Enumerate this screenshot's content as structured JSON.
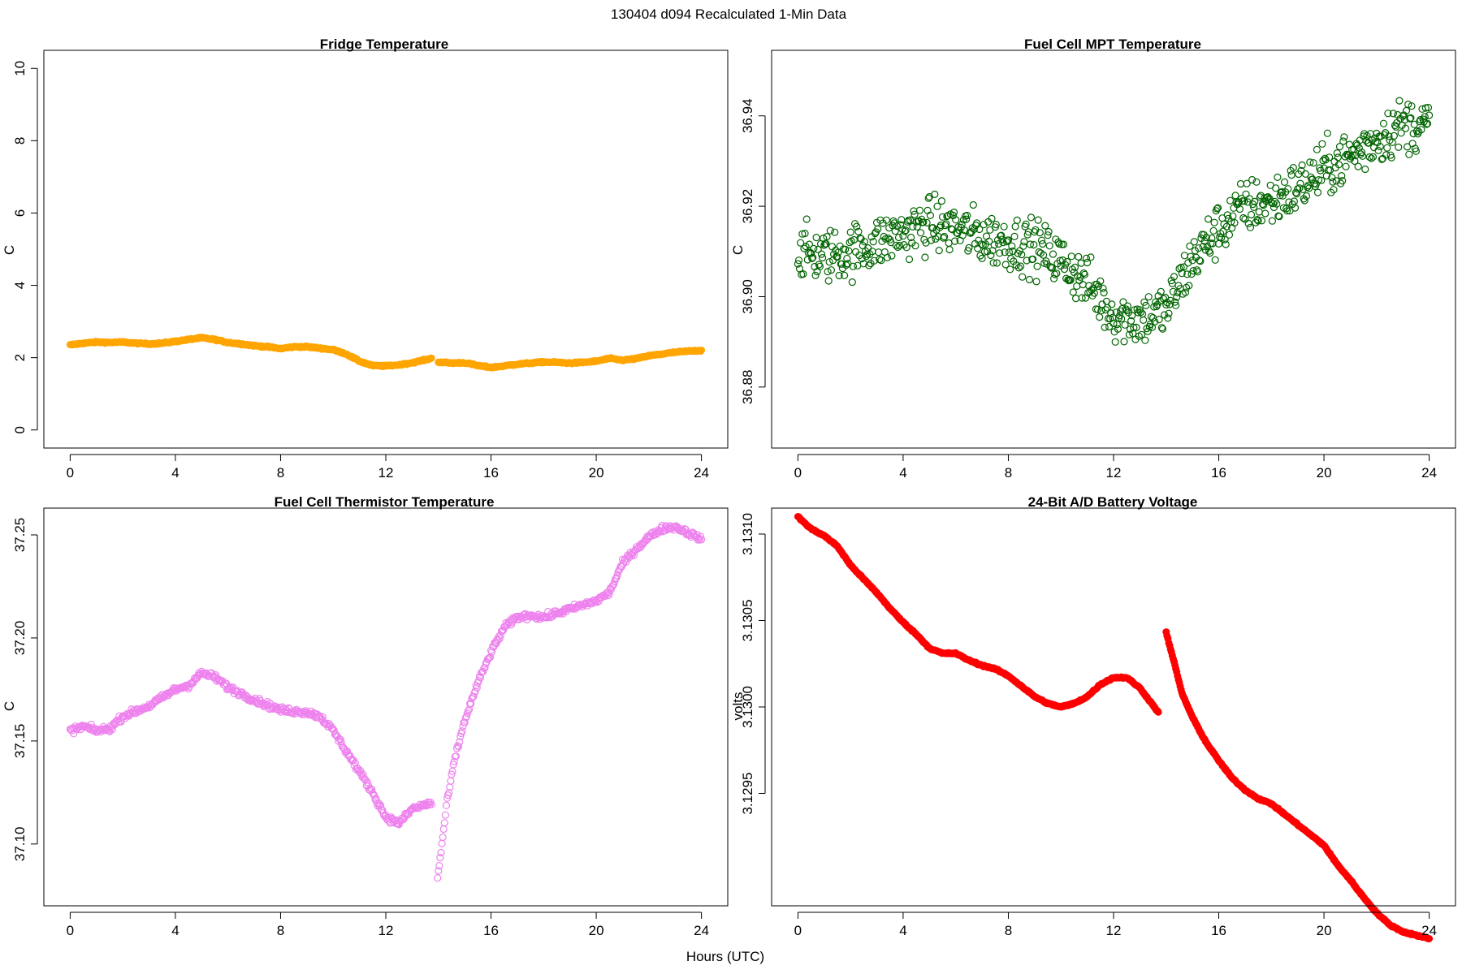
{
  "figure": {
    "title": "130404   d094   Recalculated 1-Min Data",
    "xlabel": "Hours (UTC)"
  },
  "chart_data": [
    {
      "type": "scatter",
      "title": "Fridge Temperature",
      "xlabel": "",
      "ylabel": "C",
      "xlim": [
        -1,
        25
      ],
      "ylim": [
        -0.5,
        10.5
      ],
      "xticks": [
        0,
        4,
        8,
        12,
        16,
        20,
        24
      ],
      "xtick_labels": [
        "0",
        "4",
        "8",
        "12",
        "16",
        "20",
        "24"
      ],
      "yticks": [
        0,
        2,
        4,
        6,
        8,
        10
      ],
      "ytick_labels": [
        "0",
        "2",
        "4",
        "6",
        "8",
        "10"
      ],
      "color": "#FFA500",
      "marker": "filled",
      "gaps": [
        [
          13.75,
          14.0
        ]
      ],
      "series": [
        {
          "name": "Fridge Temperature",
          "x": [
            0,
            0.5,
            1,
            1.5,
            2,
            2.5,
            3,
            3.5,
            4,
            4.5,
            5,
            5.5,
            6,
            6.5,
            7,
            7.5,
            8,
            8.5,
            9,
            9.5,
            10,
            10.5,
            11,
            11.5,
            12,
            12.5,
            13,
            13.5,
            13.75,
            14,
            14.5,
            15,
            15.5,
            16,
            16.5,
            17,
            17.5,
            18,
            18.5,
            19,
            19.5,
            20,
            20.5,
            21,
            21.5,
            22,
            22.5,
            23,
            23.5,
            24
          ],
          "y": [
            2.35,
            2.4,
            2.43,
            2.42,
            2.43,
            2.4,
            2.38,
            2.4,
            2.45,
            2.5,
            2.55,
            2.5,
            2.42,
            2.38,
            2.33,
            2.3,
            2.25,
            2.3,
            2.3,
            2.26,
            2.22,
            2.1,
            1.9,
            1.78,
            1.77,
            1.8,
            1.86,
            1.94,
            1.98,
            1.88,
            1.85,
            1.86,
            1.78,
            1.73,
            1.77,
            1.82,
            1.85,
            1.88,
            1.87,
            1.85,
            1.87,
            1.9,
            1.98,
            1.93,
            1.97,
            2.05,
            2.1,
            2.15,
            2.18,
            2.2
          ]
        }
      ]
    },
    {
      "type": "scatter",
      "title": "Fuel Cell MPT Temperature",
      "xlabel": "",
      "ylabel": "C",
      "xlim": [
        -1,
        25
      ],
      "ylim": [
        36.8665,
        36.9545
      ],
      "xticks": [
        0,
        4,
        8,
        12,
        16,
        20,
        24
      ],
      "xtick_labels": [
        "0",
        "4",
        "8",
        "12",
        "16",
        "20",
        "24"
      ],
      "yticks": [
        36.88,
        36.9,
        36.92,
        36.94
      ],
      "ytick_labels": [
        "36.88",
        "36.90",
        "36.92",
        "36.94"
      ],
      "color": "#006400",
      "marker": "open",
      "scatter_spread": 0.012,
      "series": [
        {
          "name": "Fuel Cell MPT Temperature",
          "x": [
            0,
            1,
            2,
            3,
            4,
            5,
            6,
            7,
            8,
            9,
            10,
            11,
            12,
            13,
            14,
            15,
            16,
            17,
            18,
            19,
            20,
            21,
            22,
            23,
            24
          ],
          "y": [
            36.91,
            36.909,
            36.91,
            36.912,
            36.914,
            36.916,
            36.915,
            36.913,
            36.912,
            36.911,
            36.908,
            36.903,
            36.896,
            36.895,
            36.897,
            36.908,
            36.915,
            36.92,
            36.921,
            36.924,
            36.928,
            36.931,
            36.935,
            36.938,
            36.938
          ]
        }
      ]
    },
    {
      "type": "scatter",
      "title": "Fuel Cell Thermistor Temperature",
      "xlabel": "",
      "ylabel": "C",
      "xlim": [
        -1,
        25
      ],
      "ylim": [
        37.07,
        37.263
      ],
      "xticks": [
        0,
        4,
        8,
        12,
        16,
        20,
        24
      ],
      "xtick_labels": [
        "0",
        "4",
        "8",
        "12",
        "16",
        "20",
        "24"
      ],
      "yticks": [
        37.1,
        37.15,
        37.2,
        37.25
      ],
      "ytick_labels": [
        "37.10",
        "37.15",
        "37.20",
        "37.25"
      ],
      "color": "#EE82EE",
      "marker": "open",
      "scatter_spread": 0.003,
      "gaps": [
        [
          13.75,
          13.95
        ]
      ],
      "series": [
        {
          "name": "Fuel Cell Thermistor Temperature",
          "x": [
            0,
            0.5,
            1,
            1.5,
            2,
            3,
            4,
            4.5,
            5,
            5.5,
            6,
            7,
            8,
            9,
            9.5,
            10,
            10.5,
            11,
            11.5,
            12,
            12.5,
            13,
            13.5,
            13.75,
            13.95,
            14.1,
            14.3,
            14.6,
            15,
            15.5,
            16,
            16.5,
            17,
            17.5,
            18,
            19,
            20,
            20.5,
            21,
            21.5,
            22,
            22.5,
            23,
            23.5,
            24
          ],
          "y": [
            37.155,
            37.157,
            37.155,
            37.156,
            37.162,
            37.167,
            37.175,
            37.177,
            37.183,
            37.181,
            37.176,
            37.17,
            37.165,
            37.164,
            37.162,
            37.155,
            37.145,
            37.135,
            37.125,
            37.113,
            37.11,
            37.117,
            37.119,
            37.12,
            37.082,
            37.096,
            37.118,
            37.14,
            37.16,
            37.178,
            37.193,
            37.205,
            37.21,
            37.211,
            37.21,
            37.214,
            37.218,
            37.222,
            37.236,
            37.243,
            37.249,
            37.253,
            37.254,
            37.251,
            37.248
          ]
        }
      ]
    },
    {
      "type": "scatter",
      "title": "24-Bit A/D Battery Voltage",
      "xlabel": "",
      "ylabel": "volts",
      "xlim": [
        -1,
        25
      ],
      "ylim": [
        3.12885,
        3.13115
      ],
      "xticks": [
        0,
        4,
        8,
        12,
        16,
        20,
        24
      ],
      "xtick_labels": [
        "0",
        "4",
        "8",
        "12",
        "16",
        "20",
        "24"
      ],
      "yticks": [
        3.1295,
        3.13,
        3.1305,
        3.131
      ],
      "ytick_labels": [
        "3.1295",
        "3.1300",
        "3.1305",
        "3.1310"
      ],
      "color": "#FF0000",
      "marker": "filled",
      "gaps": [
        [
          13.7,
          14.0
        ]
      ],
      "series": [
        {
          "name": "24-Bit A/D Battery Voltage",
          "x": [
            0,
            0.5,
            1,
            1.5,
            2,
            2.5,
            3,
            3.5,
            4,
            4.5,
            5,
            5.5,
            6,
            6.5,
            7,
            7.5,
            8,
            8.5,
            9,
            9.5,
            10,
            10.5,
            11,
            11.5,
            12,
            12.5,
            13,
            13.5,
            13.7,
            14,
            14.3,
            14.6,
            15,
            15.5,
            16,
            16.5,
            17,
            17.5,
            18,
            18.5,
            19,
            19.5,
            20,
            20.5,
            21,
            21.5,
            22,
            22.5,
            23,
            23.5,
            24
          ],
          "y": [
            3.1311,
            3.13103,
            3.13099,
            3.13093,
            3.13082,
            3.13074,
            3.13066,
            3.13057,
            3.13049,
            3.13042,
            3.13034,
            3.13031,
            3.13031,
            3.13027,
            3.13024,
            3.13022,
            3.13018,
            3.13012,
            3.13006,
            3.13002,
            3.13,
            3.13002,
            3.13006,
            3.13013,
            3.13017,
            3.13017,
            3.13011,
            3.13001,
            3.12997,
            3.13043,
            3.13026,
            3.13008,
            3.12994,
            3.1298,
            3.12969,
            3.12959,
            3.12952,
            3.12947,
            3.12944,
            3.12938,
            3.12932,
            3.12926,
            3.1292,
            3.12909,
            3.129,
            3.1289,
            3.12881,
            3.12874,
            3.1287,
            3.12868,
            3.12866
          ]
        }
      ]
    }
  ]
}
